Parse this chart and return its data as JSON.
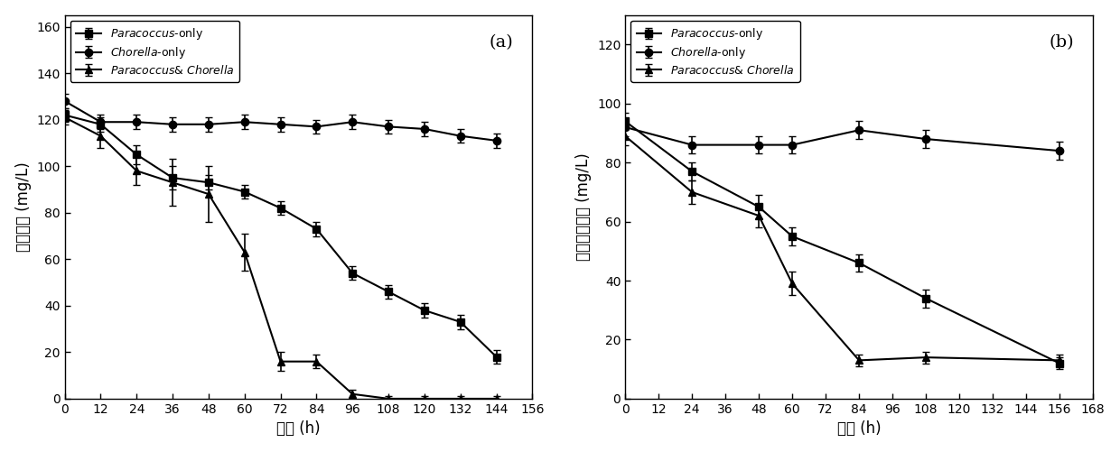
{
  "panel_a": {
    "title": "(a)",
    "xlabel": "时间 (h)",
    "ylabel": "吵啄浓度 (mg/L)",
    "ylabel_chars": [
      "吵",
      "啄",
      "浓",
      "度",
      " (mg/L)"
    ],
    "xlim": [
      0,
      156
    ],
    "ylim": [
      0,
      165
    ],
    "xticks": [
      0,
      12,
      24,
      36,
      48,
      60,
      72,
      84,
      96,
      108,
      120,
      132,
      144,
      156
    ],
    "yticks": [
      0,
      20,
      40,
      60,
      80,
      100,
      120,
      140,
      160
    ],
    "series": [
      {
        "label": "Paracoccus-only",
        "x": [
          0,
          12,
          24,
          36,
          48,
          60,
          72,
          84,
          96,
          108,
          120,
          132,
          144
        ],
        "y": [
          122,
          118,
          105,
          95,
          93,
          89,
          82,
          73,
          54,
          46,
          38,
          33,
          18
        ],
        "yerr": [
          3,
          3,
          4,
          5,
          3,
          3,
          3,
          3,
          3,
          3,
          3,
          3,
          3
        ],
        "marker": "s"
      },
      {
        "label": "Chorella-only",
        "x": [
          0,
          12,
          24,
          36,
          48,
          60,
          72,
          84,
          96,
          108,
          120,
          132,
          144
        ],
        "y": [
          128,
          119,
          119,
          118,
          118,
          119,
          118,
          117,
          119,
          117,
          116,
          113,
          111
        ],
        "yerr": [
          3,
          3,
          3,
          3,
          3,
          3,
          3,
          3,
          3,
          3,
          3,
          3,
          3
        ],
        "marker": "o"
      },
      {
        "label": "Paracoccus& Chorella",
        "x": [
          0,
          12,
          24,
          36,
          48,
          60,
          72,
          84,
          96,
          108,
          120,
          132,
          144
        ],
        "y": [
          121,
          113,
          98,
          93,
          88,
          63,
          16,
          16,
          2,
          0,
          0,
          0,
          0
        ],
        "yerr": [
          3,
          5,
          6,
          10,
          12,
          8,
          4,
          3,
          2,
          1,
          1,
          1,
          1
        ],
        "marker": "^"
      }
    ]
  },
  "panel_b": {
    "title": "(b)",
    "xlabel": "时间 (h)",
    "ylabel": "总有机碳浓度 (mg/L)",
    "xlim": [
      0,
      168
    ],
    "ylim": [
      0,
      130
    ],
    "xticks": [
      0,
      12,
      24,
      36,
      48,
      60,
      72,
      84,
      96,
      108,
      120,
      132,
      144,
      156,
      168
    ],
    "yticks": [
      0,
      20,
      40,
      60,
      80,
      100,
      120
    ],
    "series": [
      {
        "label": "Paracoccus-only",
        "x": [
          0,
          24,
          48,
          60,
          84,
          108,
          156
        ],
        "y": [
          94,
          77,
          65,
          55,
          46,
          34,
          12
        ],
        "yerr": [
          3,
          3,
          4,
          3,
          3,
          3,
          2
        ],
        "marker": "s"
      },
      {
        "label": "Chorella-only",
        "x": [
          0,
          24,
          48,
          60,
          84,
          108,
          156
        ],
        "y": [
          92,
          86,
          86,
          86,
          91,
          88,
          84
        ],
        "yerr": [
          3,
          3,
          3,
          3,
          3,
          3,
          3
        ],
        "marker": "o"
      },
      {
        "label": "Paracoccus& Chorella",
        "x": [
          0,
          24,
          48,
          60,
          84,
          108,
          156
        ],
        "y": [
          89,
          70,
          62,
          39,
          13,
          14,
          13
        ],
        "yerr": [
          3,
          4,
          4,
          4,
          2,
          2,
          2
        ],
        "marker": "^"
      }
    ]
  },
  "bg_color": "#ffffff",
  "linewidth": 1.5,
  "markersize": 6,
  "capsize": 3,
  "elinewidth": 1.2
}
